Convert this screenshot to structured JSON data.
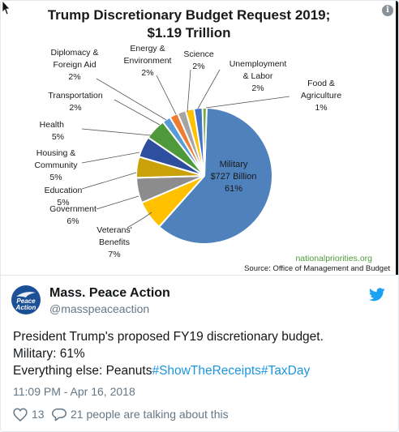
{
  "chart_data": {
    "type": "pie",
    "title": "Trump Discretionary Budget Request 2019;",
    "subtitle": "$1.19 Trillion",
    "source_url": "nationalpriorities.org",
    "source": "Source: Office of Management  and Budget",
    "slices": [
      {
        "label": [
          "Military",
          "$727 Billion",
          "61%"
        ],
        "value": 61,
        "color": "#4f81bd"
      },
      {
        "label": [
          "Veterans'",
          "Benefits",
          "7%"
        ],
        "value": 7,
        "color": "#ffc000"
      },
      {
        "label": [
          "Government",
          "6%"
        ],
        "value": 6,
        "color": "#8c8c8c"
      },
      {
        "label": [
          "Education",
          "5%"
        ],
        "value": 5,
        "color": "#c9a20a"
      },
      {
        "label": [
          "Housing &",
          "Community",
          "5%"
        ],
        "value": 5,
        "color": "#2e4f9e"
      },
      {
        "label": [
          "Health",
          "5%"
        ],
        "value": 5,
        "color": "#4e9a3a"
      },
      {
        "label": [
          "Transportation",
          "2%"
        ],
        "value": 2,
        "color": "#5b9bd5"
      },
      {
        "label": [
          "Diplomacy &",
          "Foreign Aid",
          "2%"
        ],
        "value": 2,
        "color": "#ed7d31"
      },
      {
        "label": [
          "Energy &",
          "Environment",
          "2%"
        ],
        "value": 2,
        "color": "#a5a5a5"
      },
      {
        "label": [
          "Science",
          "2%"
        ],
        "value": 2,
        "color": "#ffc000"
      },
      {
        "label": [
          "Unemployment",
          "& Labor",
          "2%"
        ],
        "value": 2,
        "color": "#4472c4"
      },
      {
        "label": [
          "Food &",
          "Agriculture",
          "1%"
        ],
        "value": 1,
        "color": "#70ad47"
      }
    ]
  },
  "tweet": {
    "display_name": "Mass. Peace Action",
    "handle": "@masspeaceaction",
    "avatar_text_1": "Peace",
    "avatar_text_2": "Action",
    "text_line1": "President Trump's proposed FY19 discretionary budget.",
    "text_line2": "Military: 61%",
    "text_line3_prefix": "Everything else: Peanuts",
    "hashtag1": "#ShowTheReceipts",
    "hashtag2": "#TaxDay",
    "timestamp": "11:09 PM - Apr 16, 2018",
    "likes": "13",
    "replies_text": "21 people are talking about this"
  },
  "icons": {
    "info": "info-icon",
    "twitter": "twitter-bird-icon",
    "like": "heart-icon",
    "reply": "speech-bubble-icon"
  },
  "colors": {
    "hashtag": "#1b95e0",
    "twitter_blue": "#1da1f2",
    "muted": "#657786"
  }
}
